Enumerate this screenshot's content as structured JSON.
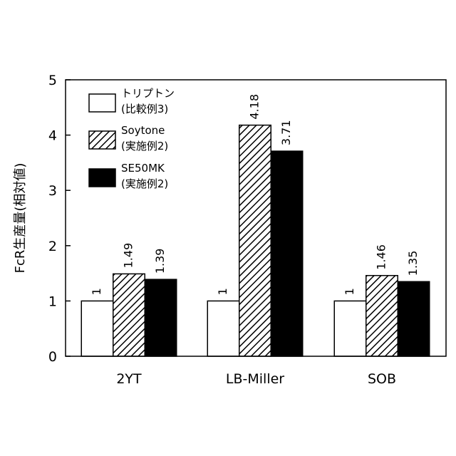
{
  "chart_data": {
    "type": "bar",
    "categories": [
      "2YT",
      "LB-Miller",
      "SOB"
    ],
    "series": [
      {
        "name": "トリプトン\n(比較例3)",
        "values": [
          1,
          1,
          1
        ],
        "value_labels": [
          "1",
          "1",
          "1"
        ],
        "fill": "white"
      },
      {
        "name": "Soytone\n(実施例2)",
        "values": [
          1.49,
          4.18,
          1.46
        ],
        "value_labels": [
          "1.49",
          "4.18",
          "1.46"
        ],
        "fill": "hatched"
      },
      {
        "name": "SE50MK\n(実施例2)",
        "values": [
          1.39,
          3.71,
          1.35
        ],
        "value_labels": [
          "1.39",
          "3.71",
          "1.35"
        ],
        "fill": "black"
      }
    ],
    "title": "",
    "xlabel": "",
    "ylabel": "FcR生産量(相対値)",
    "ylim": [
      0,
      5
    ],
    "yticks": [
      "0",
      "1",
      "2",
      "3",
      "4",
      "5"
    ],
    "grid": false,
    "legend_position": "top-left",
    "colors": {
      "bar_outline": "#000000",
      "white_fill": "#ffffff",
      "black_fill": "#000000"
    }
  }
}
